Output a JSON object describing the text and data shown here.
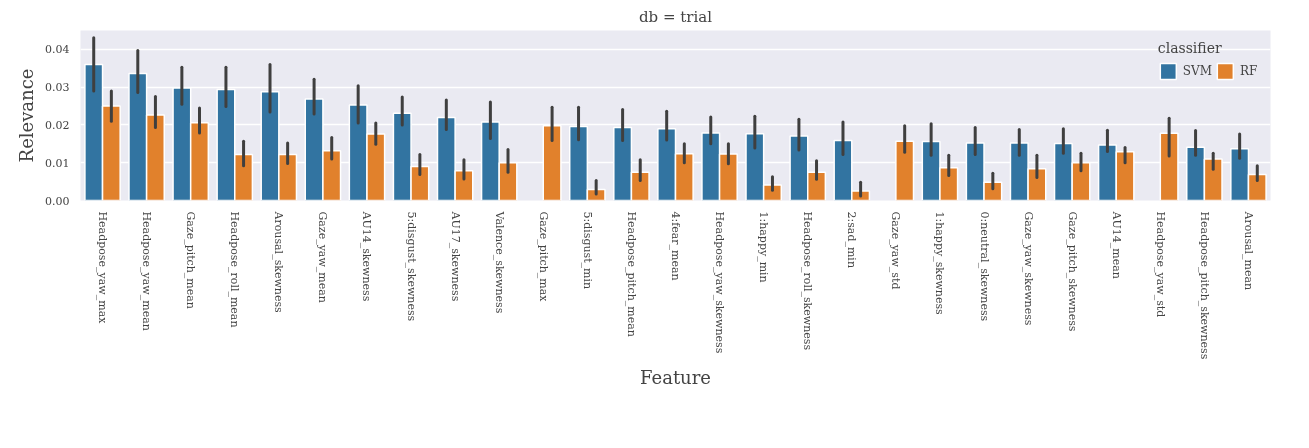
{
  "chart_data": {
    "type": "bar",
    "title": "db = trial",
    "legend_title": "classifier",
    "xlabel": "Feature",
    "ylabel": "Relevance",
    "categories": [
      "Headpose_yaw_max",
      "Headpose_yaw_mean",
      "Gaze_pitch_mean",
      "Headpose_roll_mean",
      "Arousal_skewness",
      "Gaze_yaw_mean",
      "AU14_skewness",
      "5:disgust_skewness",
      "AU17_skewness",
      "Valence_skewness",
      "Gaze_pitch_max",
      "5:disgust_min",
      "Headpose_pitch_mean",
      "4:fear_mean",
      "Headpose_yaw_skewness",
      "1:happy_min",
      "Headpose_roll_skewness",
      "2:sad_min",
      "Gaze_yaw_std",
      "1:happy_skewness",
      "0:neutral_skewness",
      "Gaze_yaw_skewness",
      "Gaze_pitch_skewness",
      "AU14_mean",
      "Headpose_yaw_std",
      "Headpose_pitch_skewness",
      "Arousal_mean"
    ],
    "series": [
      {
        "name": "SVM",
        "color": "#3274a1",
        "values": [
          0.036,
          0.0336,
          0.0298,
          0.0294,
          0.0288,
          0.0269,
          0.0253,
          0.0231,
          0.022,
          0.0208,
          null,
          0.0196,
          0.0193,
          0.019,
          0.0179,
          0.0177,
          0.0171,
          0.0159,
          null,
          0.0156,
          0.0152,
          0.0152,
          0.0151,
          0.0147,
          null,
          0.0141,
          0.0137
        ],
        "errors": [
          [
            0.029,
            0.0431
          ],
          [
            0.0286,
            0.0397
          ],
          [
            0.0255,
            0.0353
          ],
          [
            0.0249,
            0.0353
          ],
          [
            0.0234,
            0.036
          ],
          [
            0.0229,
            0.0321
          ],
          [
            0.0205,
            0.0304
          ],
          [
            0.02,
            0.0274
          ],
          [
            0.0188,
            0.0266
          ],
          [
            0.0164,
            0.0261
          ],
          null,
          [
            0.0161,
            0.0247
          ],
          [
            0.0159,
            0.0241
          ],
          [
            0.016,
            0.0236
          ],
          [
            0.015,
            0.0221
          ],
          [
            0.0139,
            0.0223
          ],
          [
            0.0134,
            0.0215
          ],
          [
            0.0122,
            0.0208
          ],
          null,
          [
            0.012,
            0.0203
          ],
          [
            0.0122,
            0.0193
          ],
          [
            0.012,
            0.0188
          ],
          [
            0.0125,
            0.019
          ],
          [
            0.013,
            0.0186
          ],
          null,
          [
            0.012,
            0.0185
          ],
          [
            0.0112,
            0.0176
          ]
        ]
      },
      {
        "name": "RF",
        "color": "#e1812c",
        "values": [
          0.025,
          0.0226,
          0.0206,
          0.0122,
          0.0122,
          0.0132,
          0.0176,
          0.009,
          0.0079,
          0.01,
          0.0198,
          0.0029,
          0.0075,
          0.0124,
          0.0123,
          0.0041,
          0.0075,
          0.0025,
          0.0157,
          0.0087,
          0.0048,
          0.0084,
          0.01,
          0.0129,
          0.0178,
          0.011,
          0.0069
        ],
        "errors": [
          [
            0.021,
            0.029
          ],
          [
            0.0193,
            0.0275
          ],
          [
            0.0179,
            0.0245
          ],
          [
            0.0092,
            0.0157
          ],
          [
            0.0098,
            0.0152
          ],
          [
            0.011,
            0.0167
          ],
          [
            0.0149,
            0.0205
          ],
          [
            0.0069,
            0.0122
          ],
          [
            0.0057,
            0.0108
          ],
          [
            0.0075,
            0.0135
          ],
          [
            0.0159,
            0.0247
          ],
          [
            0.0017,
            0.0053
          ],
          [
            0.0053,
            0.0108
          ],
          [
            0.01,
            0.015
          ],
          [
            0.0097,
            0.015
          ],
          [
            0.0027,
            0.0063
          ],
          [
            0.0056,
            0.0105
          ],
          [
            0.0012,
            0.0048
          ],
          [
            0.0128,
            0.0198
          ],
          [
            0.0066,
            0.012
          ],
          [
            0.0031,
            0.0072
          ],
          [
            0.0061,
            0.012
          ],
          [
            0.0079,
            0.0125
          ],
          [
            0.01,
            0.014
          ],
          [
            0.0118,
            0.0218
          ],
          [
            0.0083,
            0.0125
          ],
          [
            0.0053,
            0.0092
          ]
        ]
      }
    ],
    "ylim": [
      0,
      0.045
    ],
    "yticks": [
      {
        "value": 0,
        "label": "0.00"
      },
      {
        "value": 0.01,
        "label": "0.01"
      },
      {
        "value": 0.02,
        "label": "0.02"
      },
      {
        "value": 0.03,
        "label": "0.03"
      },
      {
        "value": 0.04,
        "label": "0.04"
      }
    ],
    "grid": "y",
    "legend": "top right"
  }
}
